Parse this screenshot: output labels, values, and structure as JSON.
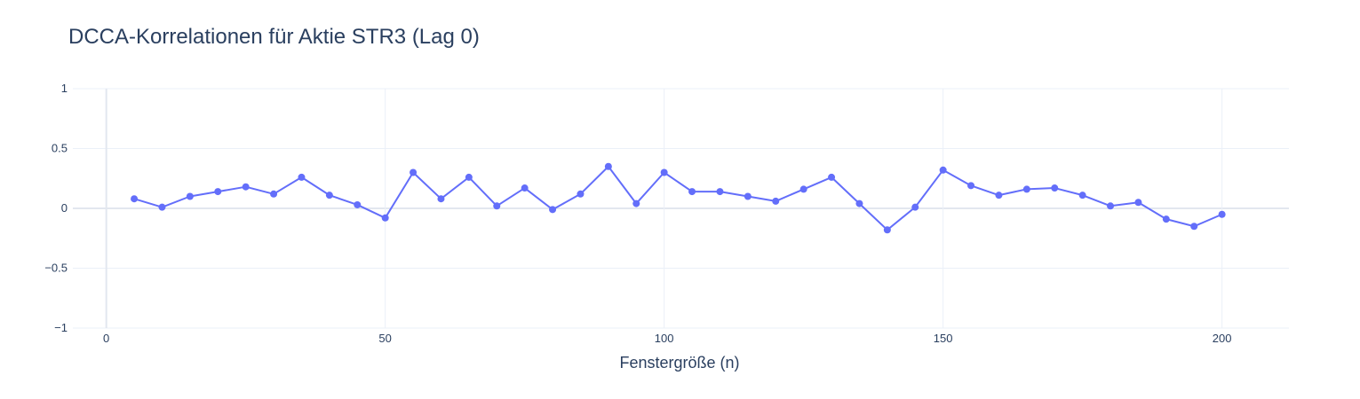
{
  "chart_data": {
    "type": "line",
    "title": "DCCA-Korrelationen für Aktie STR3 (Lag 0)",
    "xlabel": "Fenstergröße (n)",
    "ylabel": "",
    "xlim": [
      -6,
      212
    ],
    "ylim": [
      -1,
      1
    ],
    "x_ticks": [
      0,
      50,
      100,
      150,
      200
    ],
    "y_ticks": [
      -1,
      -0.5,
      0,
      0.5,
      1
    ],
    "x_tick_labels": [
      "0",
      "50",
      "100",
      "150",
      "200"
    ],
    "y_tick_labels": [
      "−1",
      "−0.5",
      "0",
      "0.5",
      "1"
    ],
    "grid": true,
    "legend": "none",
    "series": [
      {
        "color": "#636efa",
        "mode": "lines+markers",
        "x": [
          5,
          10,
          15,
          20,
          25,
          30,
          35,
          40,
          45,
          50,
          55,
          60,
          65,
          70,
          75,
          80,
          85,
          90,
          95,
          100,
          105,
          110,
          115,
          120,
          125,
          130,
          135,
          140,
          145,
          150,
          155,
          160,
          165,
          170,
          175,
          180,
          185,
          190,
          195,
          200
        ],
        "y": [
          0.08,
          0.01,
          0.1,
          0.14,
          0.18,
          0.12,
          0.26,
          0.11,
          0.03,
          -0.08,
          0.3,
          0.08,
          0.26,
          0.02,
          0.17,
          -0.01,
          0.12,
          0.35,
          0.04,
          0.3,
          0.14,
          0.14,
          0.1,
          0.06,
          0.16,
          0.26,
          0.04,
          -0.18,
          0.01,
          0.32,
          0.19,
          0.11,
          0.16,
          0.17,
          0.11,
          0.02,
          0.05,
          -0.09,
          -0.15,
          -0.05
        ]
      }
    ]
  }
}
